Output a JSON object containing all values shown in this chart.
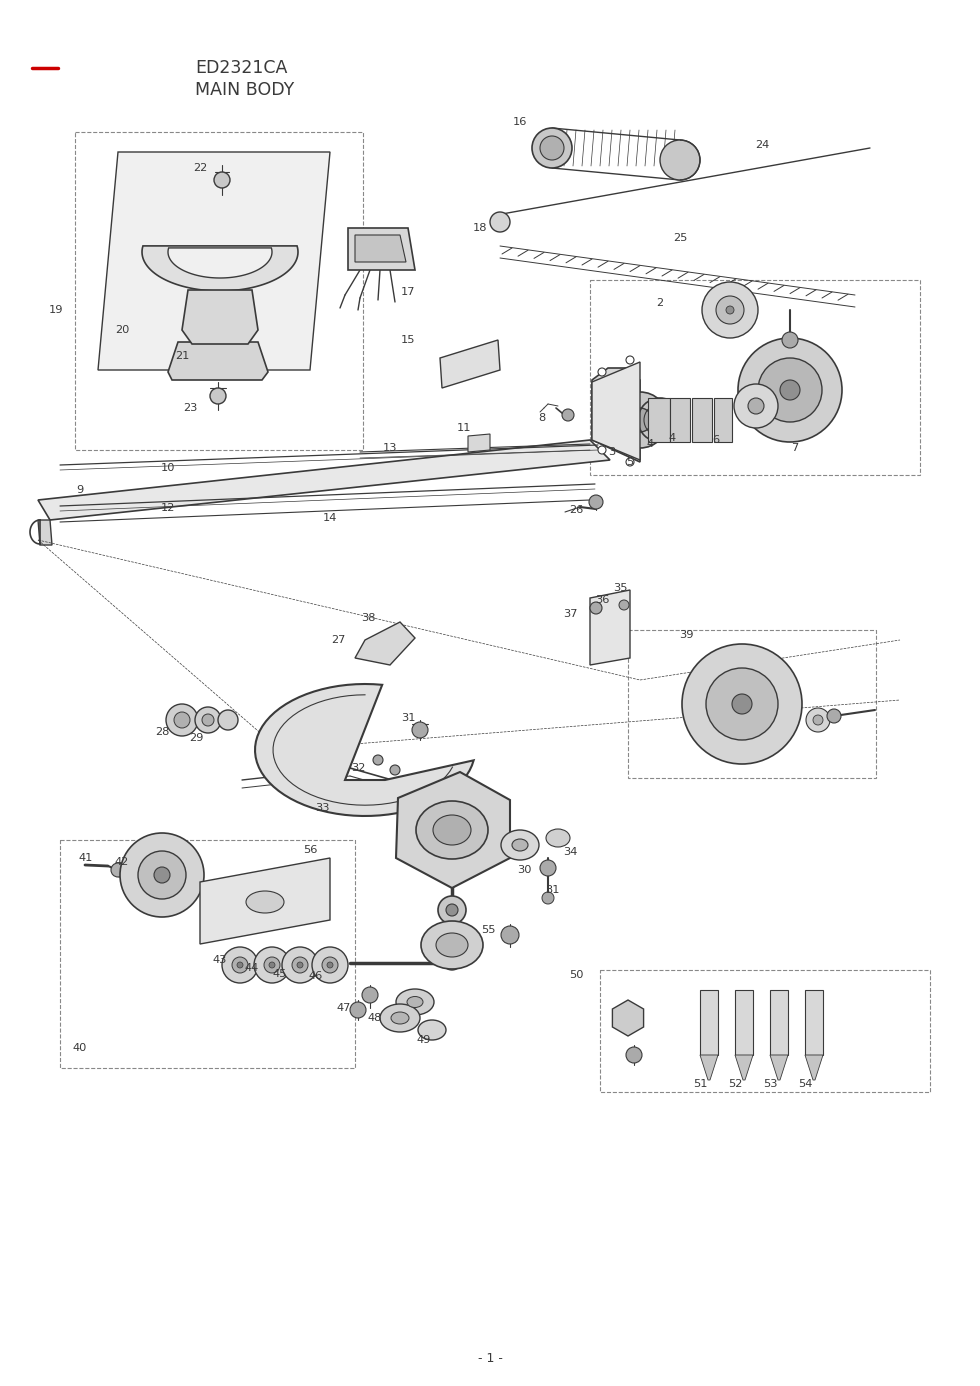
{
  "title_line": "ED2321CA",
  "title_line2": "MAIN BODY",
  "page_number": "- 1 -",
  "background": "#ffffff",
  "text_color": "#3a3a3a",
  "red_color": "#cc0000",
  "line_color": "#3a3a3a",
  "dashed_color": "#888888",
  "fig_width": 9.8,
  "fig_height": 13.86,
  "dpi": 100,
  "label_fs": 8.2
}
